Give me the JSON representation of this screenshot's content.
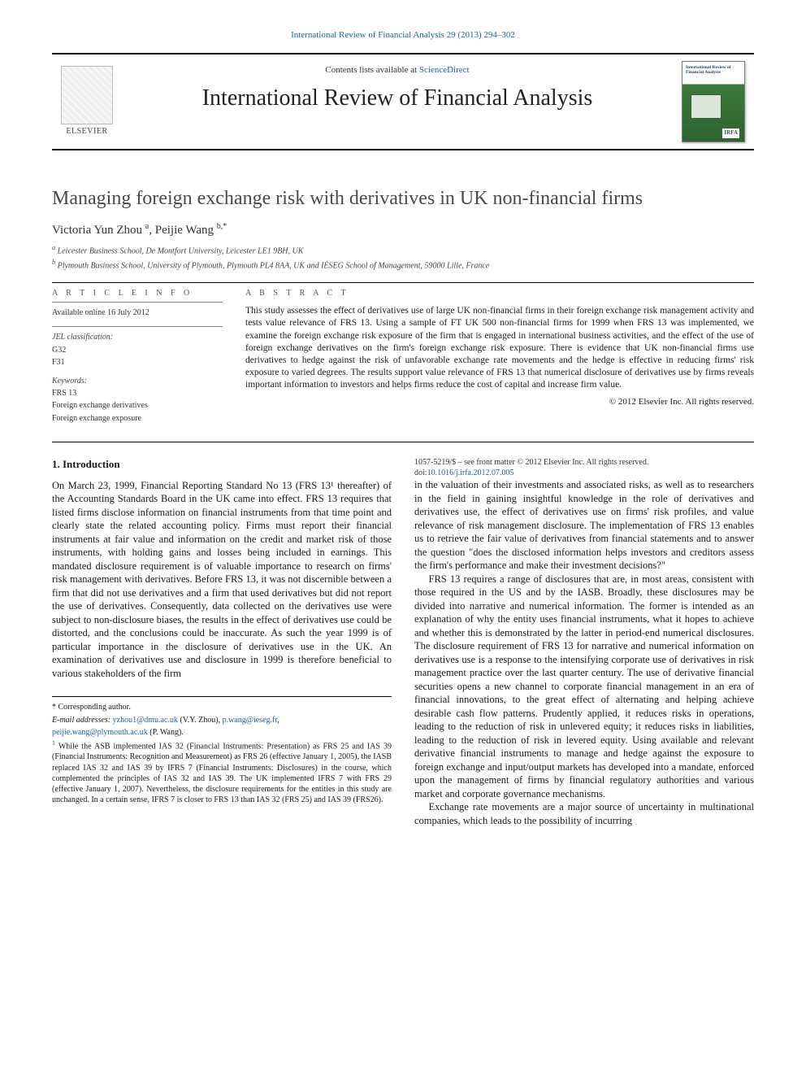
{
  "top_link": {
    "journal": "International Review of Financial Analysis",
    "cite": "29 (2013) 294–302"
  },
  "masthead": {
    "contents_prefix": "Contents lists available at ",
    "contents_link": "ScienceDirect",
    "journal_name": "International Review of Financial Analysis",
    "publisher": "ELSEVIER",
    "cover_title": "International Review of Financial Analysis",
    "cover_badge": "IRFA"
  },
  "title": "Managing foreign exchange risk with derivatives in UK non-financial firms",
  "authors_html": "Victoria Yun Zhou ",
  "authors": {
    "a1_name": "Victoria Yun Zhou",
    "a1_aff": "a",
    "a2_name": "Peijie Wang",
    "a2_aff": "b,",
    "star": "*"
  },
  "affiliations": {
    "a": "Leicester Business School, De Montfort University, Leicester LE1 9BH, UK",
    "b": "Plymouth Business School, University of Plymouth, Plymouth PL4 8AA, UK and IÉSEG School of Management, 59000 Lille, France"
  },
  "article_info": {
    "heading": "A R T I C L E   I N F O",
    "available": "Available online 16 July 2012",
    "jel_label": "JEL classification:",
    "jel": [
      "G32",
      "F31"
    ],
    "kw_label": "Keywords:",
    "keywords": [
      "FRS 13",
      "Foreign exchange derivatives",
      "Foreign exchange exposure"
    ]
  },
  "abstract": {
    "heading": "A B S T R A C T",
    "body": "This study assesses the effect of derivatives use of large UK non-financial firms in their foreign exchange risk management activity and tests value relevance of FRS 13. Using a sample of FT UK 500 non-financial firms for 1999 when FRS 13 was implemented, we examine the foreign exchange risk exposure of the firm that is engaged in international business activities, and the effect of the use of foreign exchange derivatives on the firm's foreign exchange risk exposure. There is evidence that UK non-financial firms use derivatives to hedge against the risk of unfavorable exchange rate movements and the hedge is effective in reducing firms' risk exposure to varied degrees. The results support value relevance of FRS 13 that numerical disclosure of derivatives use by firms reveals important information to investors and helps firms reduce the cost of capital and increase firm value.",
    "copyright": "© 2012 Elsevier Inc. All rights reserved."
  },
  "section1": {
    "heading": "1. Introduction",
    "p1": "On March 23, 1999, Financial Reporting Standard No 13 (FRS 13¹ thereafter) of the Accounting Standards Board in the UK came into effect. FRS 13 requires that listed firms disclose information on financial instruments from that time point and clearly state the related accounting policy. Firms must report their financial instruments at fair value and information on the credit and market risk of those instruments, with holding gains and losses being included in earnings. This mandated disclosure requirement is of valuable importance to research on firms' risk management with derivatives. Before FRS 13, it was not discernible between a firm that did not use derivatives and a firm that used derivatives but did not report the use of derivatives. Consequently, data collected on the derivatives use were subject to non-disclosure biases, the results in the effect of derivatives use could be distorted, and the conclusions could be inaccurate. As such the year 1999 is of particular importance in the disclosure of derivatives use in the UK. An examination of derivatives use and disclosure in 1999 is therefore beneficial to various stakeholders of the firm",
    "p2": "in the valuation of their investments and associated risks, as well as to researchers in the field in gaining insightful knowledge in the role of derivatives and derivatives use, the effect of derivatives use on firms' risk profiles, and value relevance of risk management disclosure. The implementation of FRS 13 enables us to retrieve the fair value of derivatives from financial statements and to answer the question \"does the disclosed information helps investors and creditors assess the firm's performance and make their investment decisions?\"",
    "p3": "FRS 13 requires a range of disclosures that are, in most areas, consistent with those required in the US and by the IASB. Broadly, these disclosures may be divided into narrative and numerical information. The former is intended as an explanation of why the entity uses financial instruments, what it hopes to achieve and whether this is demonstrated by the latter in period-end numerical disclosures. The disclosure requirement of FRS 13 for narrative and numerical information on derivatives use is a response to the intensifying corporate use of derivatives in risk management practice over the last quarter century. The use of derivative financial securities opens a new channel to corporate financial management in an era of financial innovations, to the great effect of alternating and helping achieve desirable cash flow patterns. Prudently applied, it reduces risks in operations, leading to the reduction of risk in unlevered equity; it reduces risks in liabilities, leading to the reduction of risk in levered equity. Using available and relevant derivative financial instruments to manage and hedge against the exposure to foreign exchange and input/output markets has developed into a mandate, enforced upon the management of firms by financial regulatory authorities and various market and corporate governance mechanisms.",
    "p4": "Exchange rate movements are a major source of uncertainty in multinational companies, which leads to the possibility of incurring"
  },
  "footnotes": {
    "corr_label": "* Corresponding author.",
    "email_label": "E-mail addresses: ",
    "email1": "yzhou1@dmu.ac.uk",
    "email1_who": "(V.Y. Zhou), ",
    "email2": "p.wang@ieseg.fr",
    "email2_sep": ",",
    "email3": "peijie.wang@plymouth.ac.uk",
    "email3_who": "(P. Wang).",
    "fn1": "While the ASB implemented IAS 32 (Financial Instruments: Presentation) as FRS 25 and IAS 39 (Financial Instruments: Recognition and Measurement) as FRS 26 (effective January 1, 2005), the IASB replaced IAS 32 and IAS 39 by IFRS 7 (Financial Instruments: Disclosures) in the course, which complemented the principles of IAS 32 and IAS 39. The UK implemented IFRS 7 with FRS 29 (effective January 1, 2007). Nevertheless, the disclosure requirements for the entities in this study are unchanged. In a certain sense, IFRS 7 is closer to FRS 13 than IAS 32 (FRS 25) and IAS 39 (FRS26)."
  },
  "bottom": {
    "issn": "1057-5219/$ – see front matter © 2012 Elsevier Inc. All rights reserved.",
    "doi_label": "doi:",
    "doi": "10.1016/j.irfa.2012.07.005"
  },
  "colors": {
    "link": "#1a62b8",
    "text": "#1a1a1a",
    "rule": "#000000",
    "cover_green_top": "#3b7a3a",
    "cover_green_bottom": "#2e6330"
  },
  "typography": {
    "body_pt": 12.5,
    "abstract_pt": 11.5,
    "small_pt": 10,
    "title_pt": 24,
    "journal_pt": 28
  }
}
